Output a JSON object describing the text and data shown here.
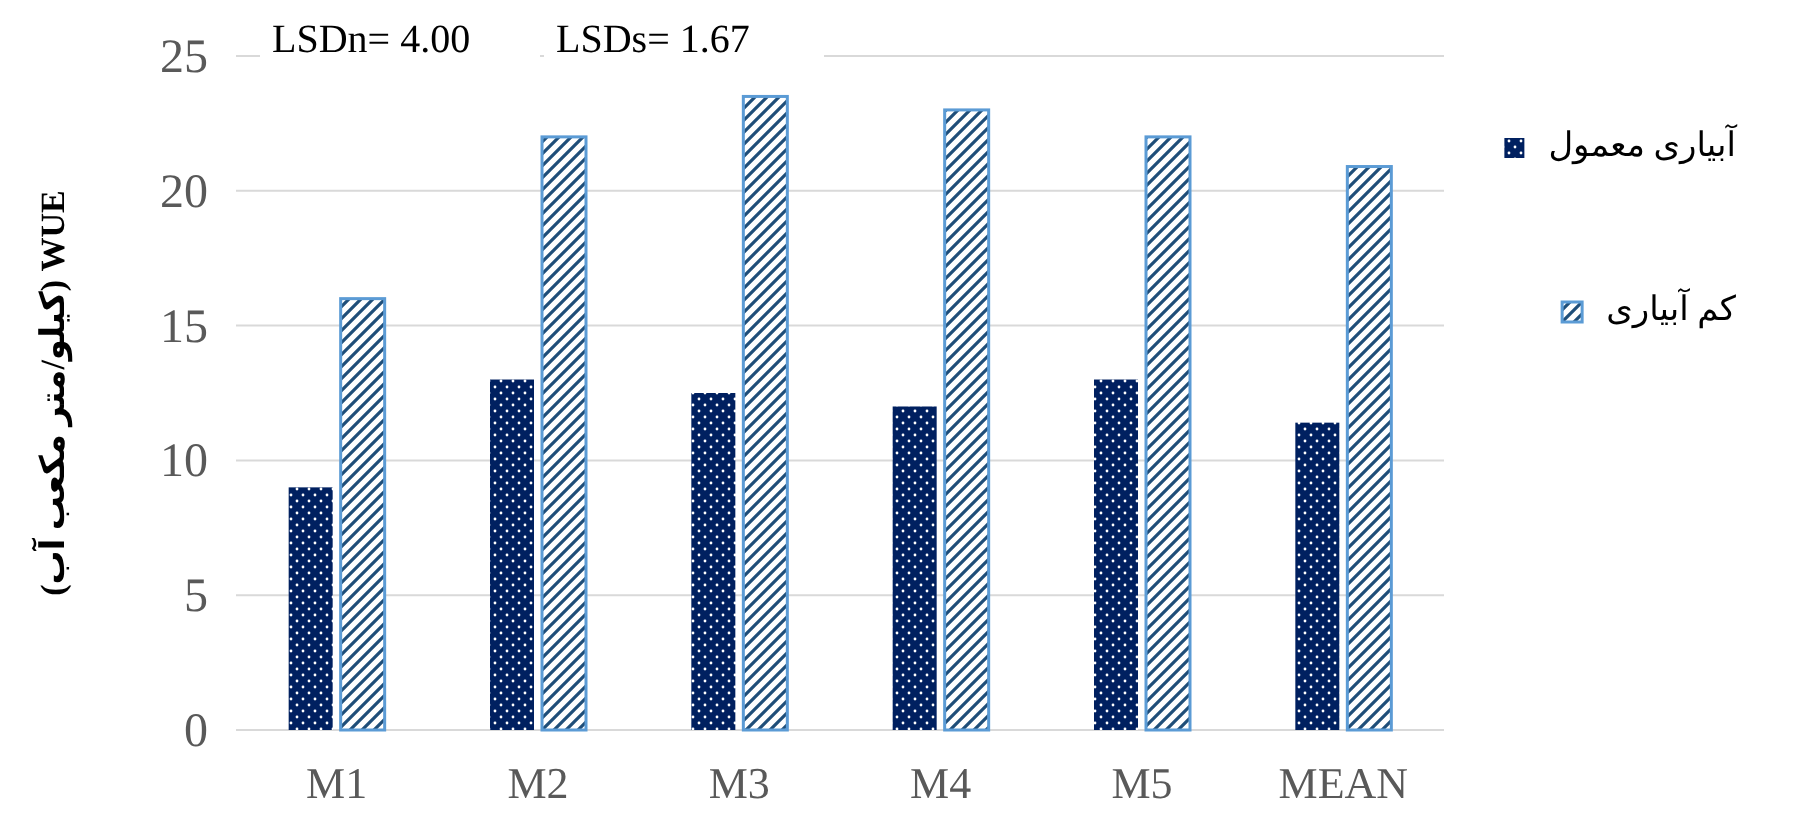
{
  "chart_data": {
    "type": "bar",
    "ylabel": "WUE (کیلو/متر مکعب آب)",
    "annotations": [
      "LSDn= 4.00",
      "LSDs= 1.67"
    ],
    "categories": [
      "M1",
      "M2",
      "M3",
      "M4",
      "M5",
      "MEAN"
    ],
    "series": [
      {
        "name": "آبیاری معمول",
        "color": "#002060",
        "values": [
          9,
          13,
          12.5,
          12,
          13,
          11.4
        ]
      },
      {
        "name": "کم آبیاری",
        "color": "#5b9bd5",
        "values": [
          16,
          22,
          23.5,
          23,
          22,
          20.9
        ]
      }
    ],
    "ylim": [
      0,
      25
    ],
    "yticks": [
      0,
      5,
      10,
      15,
      20,
      25
    ],
    "grid": "y",
    "legend": "right"
  }
}
